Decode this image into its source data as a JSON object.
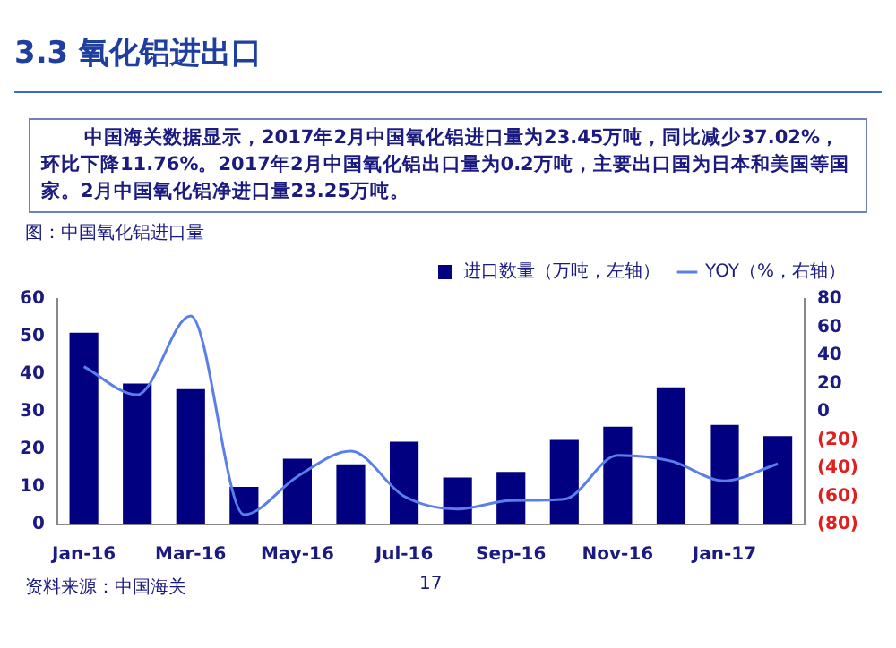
{
  "chart_data": {
    "type": "bar",
    "title": "3.3 氧化铝进出口",
    "subtitle": "中国海关数据显示，2017年2月中国氧化铝进口量为23.45万吨，同比减少37.02%，环比下降11.76%。2017年2月中国氧化铝出口量为0.2万吨，主要出口国为日本和美国等国家。2月中国氧化铝净进口量23.25万吨。",
    "annotations": [
      "图：中国氧化铝进口量",
      "资料来源：中国海关",
      "17"
    ],
    "categories": [
      "Jan-16",
      null,
      "Mar-16",
      null,
      "May-16",
      null,
      "Jul-16",
      null,
      "Sep-16",
      null,
      "Nov-16",
      null,
      "Jan-17",
      null
    ],
    "series": [
      {
        "name": "进口数量（万吨，左轴）",
        "color": "#000080",
        "values": [
          51,
          37.5,
          36,
          10,
          17.5,
          16,
          22,
          12.5,
          14,
          22.5,
          26,
          36.5,
          26.5,
          23.5
        ]
      },
      {
        "name": "YOY（%，右轴）",
        "type": "line",
        "axis": "y2",
        "color": "#5b7fe8",
        "values": [
          32,
          12,
          68,
          -73,
          -46,
          -28,
          -60,
          -69,
          -63,
          -62,
          -31,
          -35,
          -49,
          -37
        ]
      }
    ],
    "ylim": [
      0,
      60
    ],
    "yticks": [
      0,
      10,
      20,
      30,
      40,
      50,
      60
    ],
    "y2lim": [
      -80,
      80
    ],
    "y2ticks": [
      80,
      60,
      40,
      20,
      0,
      {
        "value": -20,
        "label": "(20)"
      },
      {
        "value": -40,
        "label": "(40)"
      },
      {
        "value": -60,
        "label": "(60)"
      },
      {
        "value": -80,
        "label": "(80)"
      }
    ],
    "legend": "top",
    "grid": false
  }
}
